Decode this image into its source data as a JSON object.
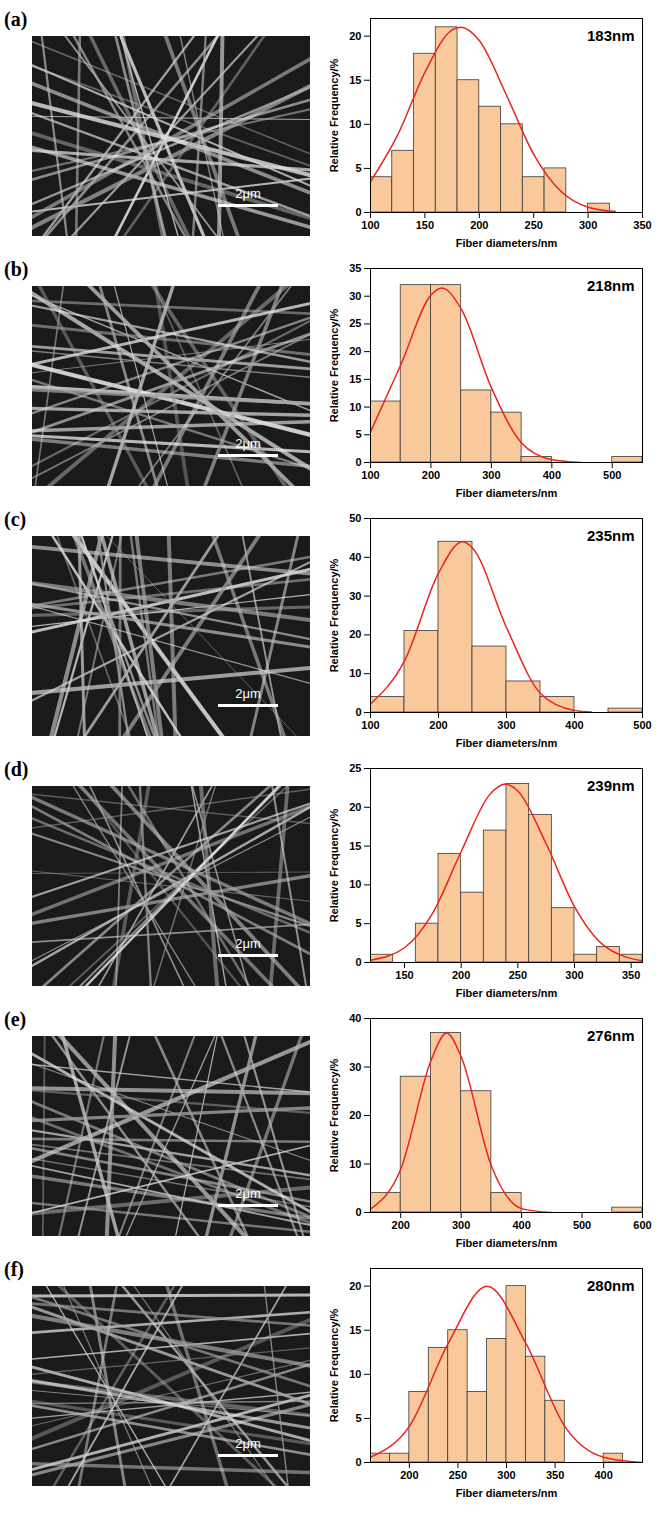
{
  "chart_data": [
    {
      "type": "histogram",
      "panel": "(a)",
      "scale_bar": "2μm",
      "title": "183nm",
      "x_label": "Fiber diameters/nm",
      "y_label": "Relative Frequency/%",
      "bins": [
        100,
        120,
        140,
        160,
        180,
        200,
        220,
        240,
        260,
        280,
        300,
        320
      ],
      "counts": [
        4,
        7,
        18,
        21,
        15,
        12,
        10,
        4,
        5,
        0,
        1
      ],
      "color": "#f9c89b",
      "grid": false,
      "xlim": [
        100,
        350
      ],
      "xticks": [
        100,
        150,
        200,
        250,
        300,
        350
      ],
      "ylim": [
        0,
        22
      ],
      "yticks": [
        0,
        5,
        10,
        15,
        20
      ],
      "fit": {
        "type": "line",
        "color": "#e8251f",
        "x": [
          100,
          125,
          150,
          175,
          183,
          200,
          225,
          250,
          275,
          300,
          325
        ],
        "values": [
          3.5,
          8.8,
          15.9,
          20.7,
          21,
          19.5,
          13.3,
          6.6,
          2.4,
          0.6,
          0.1
        ]
      }
    },
    {
      "type": "histogram",
      "panel": "(b)",
      "scale_bar": "2μm",
      "title": "218nm",
      "x_label": "Fiber diameters/nm",
      "y_label": "Relative Frequency/%",
      "bins": [
        100,
        150,
        200,
        250,
        300,
        350,
        400,
        450,
        500,
        550
      ],
      "counts": [
        11,
        32,
        32,
        13,
        9,
        1,
        0,
        0,
        1
      ],
      "color": "#f9c89b",
      "grid": false,
      "xlim": [
        100,
        550
      ],
      "xticks": [
        100,
        200,
        300,
        400,
        500
      ],
      "ylim": [
        0,
        35
      ],
      "yticks": [
        0,
        5,
        10,
        15,
        20,
        25,
        30,
        35
      ],
      "fit": {
        "type": "line",
        "color": "#e8251f",
        "x": [
          100,
          150,
          200,
          218,
          250,
          300,
          350,
          400,
          450
        ],
        "values": [
          5.5,
          17.6,
          30.2,
          31.5,
          27.7,
          13.5,
          3.5,
          0.5,
          0
        ]
      }
    },
    {
      "type": "histogram",
      "panel": "(c)",
      "scale_bar": "2μm",
      "title": "235nm",
      "x_label": "Fiber diameters/nm",
      "y_label": "Relative Frequency/%",
      "bins": [
        100,
        150,
        200,
        250,
        300,
        350,
        400,
        450,
        500
      ],
      "counts": [
        4,
        21,
        44,
        17,
        8,
        4,
        0,
        1
      ],
      "color": "#f9c89b",
      "grid": false,
      "xlim": [
        100,
        500
      ],
      "xticks": [
        100,
        200,
        300,
        400,
        500
      ],
      "ylim": [
        0,
        50
      ],
      "yticks": [
        0,
        10,
        20,
        30,
        40,
        50
      ],
      "fit": {
        "type": "line",
        "color": "#e8251f",
        "x": [
          100,
          150,
          200,
          235,
          250,
          300,
          350,
          400,
          425
        ],
        "values": [
          2.2,
          13.3,
          35.9,
          44,
          42.4,
          21.9,
          4.9,
          0.5,
          0.1
        ]
      }
    },
    {
      "type": "histogram",
      "panel": "(d)",
      "scale_bar": "2μm",
      "title": "239nm",
      "x_label": "Fiber diameters/nm",
      "y_label": "Relative Frequency/%",
      "bins": [
        120,
        140,
        160,
        180,
        200,
        220,
        240,
        260,
        280,
        300,
        320,
        340,
        360
      ],
      "counts": [
        1,
        0,
        5,
        14,
        9,
        17,
        23,
        19,
        7,
        1,
        2,
        1
      ],
      "color": "#f9c89b",
      "grid": false,
      "xlim": [
        120,
        360
      ],
      "xticks": [
        150,
        200,
        250,
        300,
        350
      ],
      "ylim": [
        0,
        25
      ],
      "yticks": [
        0,
        5,
        10,
        15,
        20,
        25
      ],
      "fit": {
        "type": "line",
        "color": "#e8251f",
        "x": [
          120,
          150,
          175,
          200,
          225,
          239,
          250,
          275,
          300,
          325,
          360
        ],
        "values": [
          0.3,
          1.9,
          6.4,
          14.3,
          21.6,
          23,
          22.1,
          15.3,
          7.2,
          2.3,
          0.2
        ]
      }
    },
    {
      "type": "histogram",
      "panel": "(e)",
      "scale_bar": "2μm",
      "title": "276nm",
      "x_label": "Fiber diameters/nm",
      "y_label": "Relative Frequency/%",
      "bins": [
        150,
        200,
        250,
        300,
        350,
        400,
        450,
        500,
        550,
        600
      ],
      "counts": [
        4,
        28,
        37,
        25,
        4,
        0,
        0,
        0,
        1
      ],
      "color": "#f9c89b",
      "grid": false,
      "xlim": [
        150,
        600
      ],
      "xticks": [
        200,
        300,
        400,
        500,
        600
      ],
      "ylim": [
        0,
        40
      ],
      "yticks": [
        0,
        10,
        20,
        30,
        40
      ],
      "fit": {
        "type": "line",
        "color": "#e8251f",
        "x": [
          150,
          200,
          250,
          276,
          300,
          350,
          400,
          450
        ],
        "values": [
          0.7,
          8.9,
          31.3,
          37,
          32.1,
          9.6,
          0.8,
          0
        ]
      }
    },
    {
      "type": "histogram",
      "panel": "(f)",
      "scale_bar": "2μm",
      "title": "280nm",
      "x_label": "Fiber diameters/nm",
      "y_label": "Relative Frequency/%",
      "bins": [
        160,
        180,
        200,
        220,
        240,
        260,
        280,
        300,
        320,
        340,
        360,
        380,
        400,
        420
      ],
      "counts": [
        1,
        1,
        8,
        13,
        15,
        8,
        14,
        20,
        12,
        7,
        0,
        0,
        1
      ],
      "color": "#f9c89b",
      "grid": false,
      "xlim": [
        160,
        440
      ],
      "xticks": [
        200,
        250,
        300,
        350,
        400
      ],
      "ylim": [
        0,
        22
      ],
      "yticks": [
        0,
        5,
        10,
        15,
        20
      ],
      "fit": {
        "type": "line",
        "color": "#e8251f",
        "x": [
          160,
          200,
          240,
          280,
          320,
          360,
          400,
          440
        ],
        "values": [
          0.6,
          4.1,
          13.5,
          20,
          13.5,
          4.1,
          0.6,
          0
        ]
      }
    }
  ]
}
